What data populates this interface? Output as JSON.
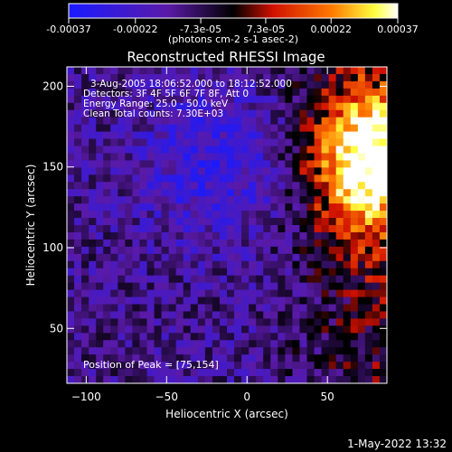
{
  "chart_data": {
    "type": "heatmap",
    "title": "Reconstructed RHESSI Image",
    "xlabel": "Heliocentric X (arcsec)",
    "ylabel": "Heliocentric Y (arcsec)",
    "xlim": [
      -112,
      87
    ],
    "ylim": [
      16,
      212
    ],
    "x_ticks": [
      -100,
      -50,
      0,
      50
    ],
    "y_ticks": [
      50,
      100,
      150,
      200
    ],
    "annotations": [
      "3-Aug-2005 18:06:52.000 to 18:12:52.000",
      "Detectors: 3F 4F 5F 6F 7F 8F, Att 0",
      "Energy Range: 25.0 - 50.0 keV",
      "Clean     Total counts: 7.30E+03"
    ],
    "peak_label": "Position of Peak = [75,154]",
    "peak": [
      75,
      154
    ],
    "colorbar": {
      "min": -0.00037,
      "max": 0.00037,
      "ticks": [
        "-0.00037",
        "-0.00022",
        "-7.3e-05",
        "7.3e-05",
        "0.00022",
        "0.00037"
      ],
      "tick_values": [
        -0.00037,
        -0.00022,
        -7.3e-05,
        7.3e-05,
        0.00022,
        0.00037
      ],
      "unit_label": "(photons cm-2 s-1 asec-2)",
      "colors": [
        "#1a1aff",
        "#5a1aa8",
        "#000000",
        "#d01000",
        "#ff7a00",
        "#ffff40",
        "#ffffff"
      ]
    },
    "grid": false,
    "legend": "none"
  },
  "timestamp": "1-May-2022 13:32"
}
